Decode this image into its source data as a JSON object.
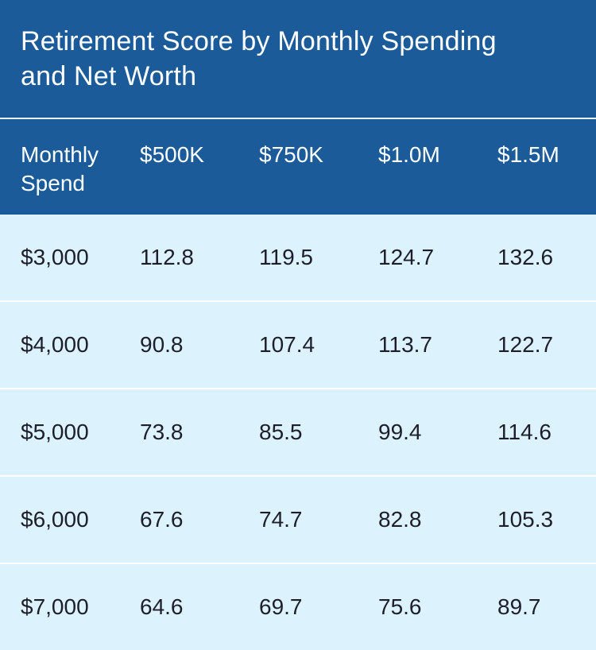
{
  "colors": {
    "header_bg": "#1b5b99",
    "row_bg": "#dcf3fd",
    "header_text": "#ffffff",
    "body_text": "#1e1e2a"
  },
  "chart_data": {
    "type": "table",
    "title": "Retirement Score by Monthly Spending and Net Worth",
    "columns": [
      "Monthly Spend",
      "$500K",
      "$750K",
      "$1.0M",
      "$1.5M"
    ],
    "rows": [
      [
        "$3,000",
        "112.8",
        "119.5",
        "124.7",
        "132.6"
      ],
      [
        "$4,000",
        "90.8",
        "107.4",
        "113.7",
        "122.7"
      ],
      [
        "$5,000",
        "73.8",
        "85.5",
        "99.4",
        "114.6"
      ],
      [
        "$6,000",
        "67.6",
        "74.7",
        "82.8",
        "105.3"
      ],
      [
        "$7,000",
        "64.6",
        "69.7",
        "75.6",
        "89.7"
      ]
    ]
  }
}
